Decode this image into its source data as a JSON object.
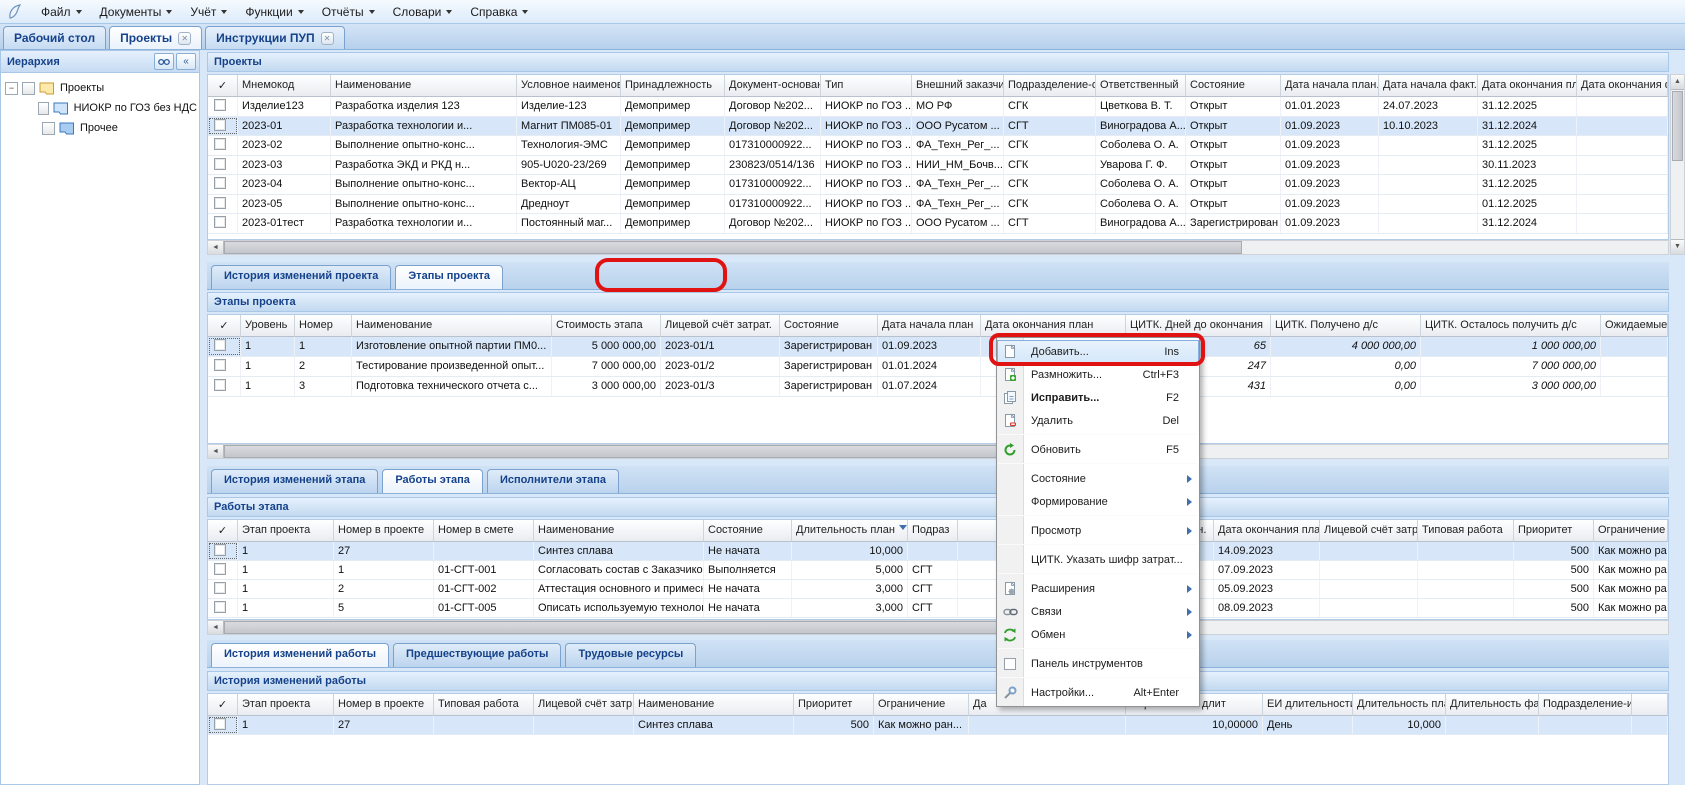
{
  "menubar": {
    "items": [
      "Файл",
      "Документы",
      "Учёт",
      "Функции",
      "Отчёты",
      "Словари",
      "Справка"
    ]
  },
  "main_tabs": [
    {
      "label": "Рабочий стол",
      "active": false,
      "closable": false
    },
    {
      "label": "Проекты",
      "active": true,
      "closable": true
    },
    {
      "label": "Инструкции ПУП",
      "active": false,
      "closable": true
    }
  ],
  "sidebar": {
    "title": "Иерархия",
    "tools": [
      "search-icon",
      "collapse-icon"
    ],
    "tree": [
      {
        "label": "Проекты",
        "level": 0,
        "expanded": true,
        "folder": "yellow-open",
        "checkbox": true
      },
      {
        "label": "НИОКР по ГОЗ без НДС",
        "level": 1,
        "folder": "blue-open",
        "checkbox": true
      },
      {
        "label": "Прочее",
        "level": 1,
        "folder": "blue-closed",
        "checkbox": true
      }
    ]
  },
  "projects": {
    "title": "Проекты",
    "columns": [
      "",
      "Мнемокод",
      "Наименование",
      "Условное наименова",
      "Принадлежность",
      "Документ-основан",
      "Тип",
      "Внешний заказчик",
      "Подразделение-от",
      "Ответственный",
      "Состояние",
      "Дата начала план.",
      "Дата начала факт.",
      "Дата окончания пл",
      "Дата окончания ф"
    ],
    "selected_row": 1,
    "rows": [
      [
        "Изделие123",
        "Разработка изделия 123",
        "Изделие-123",
        "Демопример",
        "Договор №202...",
        "НИОКР по ГОЗ ...",
        "МО РФ",
        "СГК",
        "Цветкова В. Т.",
        "Открыт",
        "01.01.2023",
        "24.07.2023",
        "31.12.2025",
        ""
      ],
      [
        "2023-01",
        "Разработка технологии и...",
        "Магнит ПМ085-01",
        "Демопример",
        "Договор №202...",
        "НИОКР по ГОЗ ...",
        "ООО Русатом ...",
        "СГТ",
        "Виноградова А...",
        "Открыт",
        "01.09.2023",
        "10.10.2023",
        "31.12.2024",
        ""
      ],
      [
        "2023-02",
        "Выполнение опытно-конс...",
        "Технология-ЭМС",
        "Демопример",
        "017310000922...",
        "НИОКР по ГОЗ ...",
        "ФА_Техн_Рег_...",
        "СГК",
        "Соболева О. А.",
        "Открыт",
        "01.09.2023",
        "",
        "31.12.2025",
        ""
      ],
      [
        "2023-03",
        "Разработка ЭКД и РКД н...",
        "905-U020-23/269",
        "Демопример",
        "230823/0514/136",
        "НИОКР по ГОЗ ...",
        "НИИ_НМ_Бочв...",
        "СГК",
        "Уварова Г. Ф.",
        "Открыт",
        "01.09.2023",
        "",
        "30.11.2023",
        ""
      ],
      [
        "2023-04",
        "Выполнение опытно-конс...",
        "Вектор-АЦ",
        "Демопример",
        "017310000922...",
        "НИОКР по ГОЗ ...",
        "ФА_Техн_Рег_...",
        "СГК",
        "Соболева О. А.",
        "Открыт",
        "01.09.2023",
        "",
        "31.12.2025",
        ""
      ],
      [
        "2023-05",
        "Выполнение опытно-конс...",
        "Дредноут",
        "Демопример",
        "017310000922...",
        "НИОКР по ГОЗ ...",
        "ФА_Техн_Рег_...",
        "СГК",
        "Соболева О. А.",
        "Открыт",
        "01.09.2023",
        "",
        "01.12.2025",
        ""
      ],
      [
        "2023-01тест",
        "Разработка технологии и...",
        "Постоянный маг...",
        "Демопример",
        "Договор №202...",
        "НИОКР по ГОЗ ...",
        "ООО Русатом ...",
        "СГТ",
        "Виноградова А...",
        "Зарегистрирован",
        "01.09.2023",
        "",
        "31.12.2024",
        ""
      ]
    ]
  },
  "stage_tabs": [
    {
      "label": "История изменений проекта",
      "active": false
    },
    {
      "label": "Этапы проекта",
      "active": true,
      "annotated": true
    }
  ],
  "stages": {
    "title": "Этапы проекта",
    "columns": [
      "",
      "Уровень",
      "Номер",
      "Наименование",
      "Стоимость этапа",
      "Лицевой счёт затрат.",
      "Состояние",
      "Дата начала план",
      "Дата окончания план",
      "ЦИТК. Дней до окончания",
      "ЦИТК. Получено д/с",
      "ЦИТК. Осталось получить д/с",
      "Ожидаемые"
    ],
    "selected_row": 0,
    "rows": [
      [
        "1",
        "1",
        "Изготовление опытной партии ПМ0...",
        "5 000 000,00",
        "2023-01/1",
        "Зарегистрирован",
        "01.09.2023",
        "",
        "65",
        "4 000 000,00",
        "1 000 000,00",
        ""
      ],
      [
        "1",
        "2",
        "Тестирование произведенной опыт...",
        "7 000 000,00",
        "2023-01/2",
        "Зарегистрирован",
        "01.01.2024",
        "",
        "247",
        "0,00",
        "7 000 000,00",
        ""
      ],
      [
        "1",
        "3",
        "Подготовка технического отчета с...",
        "3 000 000,00",
        "2023-01/3",
        "Зарегистрирован",
        "01.07.2024",
        "",
        "431",
        "0,00",
        "3 000 000,00",
        ""
      ]
    ]
  },
  "work_tabs": [
    {
      "label": "История изменений этапа",
      "active": false
    },
    {
      "label": "Работы этапа",
      "active": true
    },
    {
      "label": "Исполнители этапа",
      "active": false
    }
  ],
  "works": {
    "title": "Работы этапа",
    "columns": [
      "",
      "Этап проекта",
      "Номер в проекте",
      "Номер в смете",
      "Наименование",
      "Состояние",
      "Длительность план",
      "Подраз",
      "",
      "Дата начала план.",
      "Дата окончания план",
      "Лицевой счёт затр",
      "Типовая работа",
      "Приоритет",
      "Ограничение"
    ],
    "selected_row": 0,
    "sorted_column": "Длительность план",
    "rows": [
      [
        "1",
        "27",
        "",
        "Синтез сплава",
        "Не начата",
        "10,000",
        "",
        "",
        "",
        "14.09.2023",
        "",
        "",
        "500",
        "Как можно ран..."
      ],
      [
        "1",
        "1",
        "01-СГТ-001",
        "Согласовать состав с Заказчиком",
        "Выполняется",
        "5,000",
        "СГТ",
        "",
        "",
        "07.09.2023",
        "",
        "",
        "500",
        "Как можно ран..."
      ],
      [
        "1",
        "2",
        "01-СГТ-002",
        "Аттестация основного и примесног...",
        "Не начата",
        "3,000",
        "СГТ",
        "",
        "",
        "05.09.2023",
        "",
        "",
        "500",
        "Как можно ран..."
      ],
      [
        "1",
        "5",
        "01-СГТ-005",
        "Описать используемую технологию",
        "Не начата",
        "3,000",
        "СГТ",
        "",
        "",
        "08.09.2023",
        "",
        "",
        "500",
        "Как можно ран..."
      ]
    ]
  },
  "history_tabs": [
    {
      "label": "История изменений работы",
      "active": true
    },
    {
      "label": "Предшествующие работы",
      "active": false
    },
    {
      "label": "Трудовые ресурсы",
      "active": false
    }
  ],
  "history": {
    "title": "История изменений работы",
    "columns": [
      "",
      "Этап проекта",
      "Номер в проекте",
      "Типовая работа",
      "Лицевой счёт затр",
      "Наименование",
      "Приоритет",
      "Ограничение",
      "Да",
      "Нормативная длит",
      "ЕИ длительности",
      "Длительность пла",
      "Длительность фак",
      "Подразделение-ис",
      ""
    ],
    "selected_row": 0,
    "rows": [
      [
        "1",
        "27",
        "",
        "",
        "Синтез сплава",
        "500",
        "Как можно ран...",
        "",
        "10,00000",
        "День",
        "10,000",
        "",
        "",
        ""
      ]
    ]
  },
  "context_menu": {
    "items": [
      {
        "label": "Добавить...",
        "shortcut": "Ins",
        "icon": "add-page-icon",
        "highlighted": true,
        "annotated": true
      },
      {
        "label": "Размножить...",
        "shortcut": "Ctrl+F3",
        "icon": "copy-page-icon"
      },
      {
        "label": "Исправить...",
        "shortcut": "F2",
        "icon": "edit-page-icon",
        "bold": true
      },
      {
        "label": "Удалить",
        "shortcut": "Del",
        "icon": "delete-page-icon",
        "separator_after": true
      },
      {
        "label": "Обновить",
        "shortcut": "F5",
        "icon": "refresh-icon",
        "separator_after": true
      },
      {
        "label": "Состояние",
        "submenu": true
      },
      {
        "label": "Формирование",
        "submenu": true,
        "separator_after": true
      },
      {
        "label": "Просмотр",
        "submenu": true,
        "separator_after": true
      },
      {
        "label": "ЦИТК. Указать шифр затрат...",
        "separator_after": true
      },
      {
        "label": "Расширения",
        "icon": "extensions-icon",
        "submenu": true
      },
      {
        "label": "Связи",
        "icon": "links-icon",
        "submenu": true
      },
      {
        "label": "Обмен",
        "icon": "exchange-icon",
        "submenu": true,
        "separator_after": true
      },
      {
        "label": "Панель инструментов",
        "icon": "toolbar-checkbox-icon",
        "separator_after": true
      },
      {
        "label": "Настройки...",
        "shortcut": "Alt+Enter",
        "icon": "settings-icon"
      }
    ]
  },
  "colors": {
    "accent": "#15428b",
    "selection": "#d7e7f9",
    "annotation": "#e01212"
  }
}
